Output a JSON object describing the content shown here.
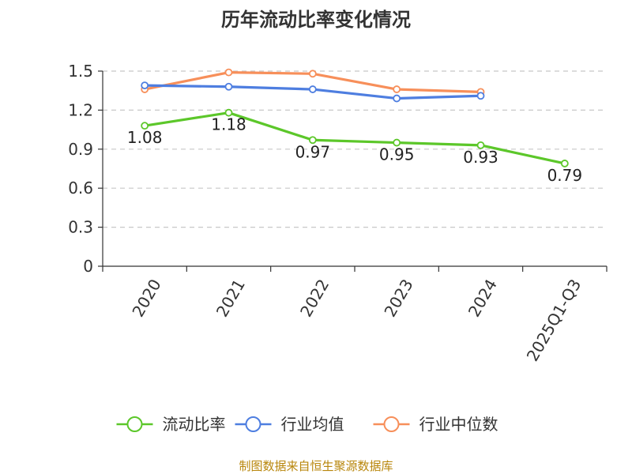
{
  "chart_data": {
    "type": "line",
    "title": "历年流动比率变化情况",
    "xlabel": "",
    "ylabel": "",
    "categories": [
      "2020",
      "2021",
      "2022",
      "2023",
      "2024",
      "2025Q1-Q3"
    ],
    "ylim": [
      0,
      1.5
    ],
    "y_ticks": [
      "0",
      "0.3",
      "0.6",
      "0.9",
      "1.2",
      "1.5"
    ],
    "grid": true,
    "legend_position": "bottom",
    "series": [
      {
        "name": "流动比率",
        "color": "#5cc72a",
        "values": [
          1.08,
          1.18,
          0.97,
          0.95,
          0.93,
          0.79
        ],
        "labels": [
          "1.08",
          "1.18",
          "0.97",
          "0.95",
          "0.93",
          "0.79"
        ]
      },
      {
        "name": "行业均值",
        "color": "#4e7ee0",
        "values": [
          1.39,
          1.38,
          1.36,
          1.29,
          1.31,
          null
        ]
      },
      {
        "name": "行业中位数",
        "color": "#f78f5a",
        "values": [
          1.36,
          1.49,
          1.48,
          1.36,
          1.34,
          null
        ]
      }
    ],
    "source": "制图数据来自恒生聚源数据库"
  }
}
